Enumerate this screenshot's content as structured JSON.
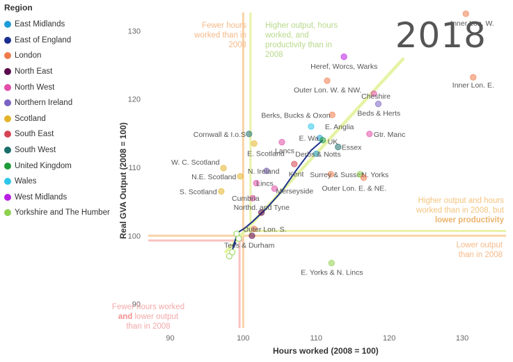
{
  "legend": {
    "title": "Region",
    "items": [
      {
        "label": "East Midlands",
        "color": "#1f9bd8"
      },
      {
        "label": "East of England",
        "color": "#1b2f8e"
      },
      {
        "label": "London",
        "color": "#ee7b4b"
      },
      {
        "label": "North East",
        "color": "#5a0a4d"
      },
      {
        "label": "North West",
        "color": "#e24da8"
      },
      {
        "label": "Northern Ireland",
        "color": "#7a63c2"
      },
      {
        "label": "Scotland",
        "color": "#e3b42b"
      },
      {
        "label": "South East",
        "color": "#d64454"
      },
      {
        "label": "South West",
        "color": "#1b6e6a"
      },
      {
        "label": "United Kingdom",
        "color": "#1e9a37"
      },
      {
        "label": "Wales",
        "color": "#2cc6ea"
      },
      {
        "label": "West Midlands",
        "color": "#b81ee3"
      },
      {
        "label": "Yorkshire and The Humber",
        "color": "#8fd14f"
      }
    ]
  },
  "year": "2018",
  "notes": {
    "top_left": "Fewer hours worked than in 2008",
    "top_right": "Higher output, hours worked, and productivity than in 2008",
    "right_line1": "Higher output and hours worked than in 2008, but",
    "right_bold": "lower productivity",
    "bottom_right": "Lower output than in 2008",
    "bottom_left_1": "Fewer hours worked",
    "bottom_left_bold": "and",
    "bottom_left_2": "lower output than in 2008"
  },
  "chart_data": {
    "type": "scatter",
    "xlabel": "Hours worked (2008 = 100)",
    "ylabel": "Real GVA Output (2008 = 100)",
    "xlim": [
      87,
      136
    ],
    "ylim": [
      86.5,
      133.5
    ],
    "xticks": [
      90,
      100,
      110,
      120,
      130
    ],
    "yticks": [
      90,
      100,
      110,
      120,
      130
    ],
    "points": [
      {
        "label": "Inner Lon. W.",
        "x": 130.5,
        "y": 132.5,
        "color": "#ee7b4b"
      },
      {
        "label": "Inner Lon. E.",
        "x": 131.5,
        "y": 123.2,
        "color": "#ee7b4b"
      },
      {
        "label": "Heref, Worcs, Warks",
        "x": 113.8,
        "y": 126.2,
        "color": "#b81ee3"
      },
      {
        "label": "Outer Lon. W. & NW.",
        "x": 111.5,
        "y": 122.7,
        "color": "#ee7b4b"
      },
      {
        "label": "Cheshire",
        "x": 117.9,
        "y": 120.8,
        "color": "#e24da8"
      },
      {
        "label": "Beds & Herts",
        "x": 118.5,
        "y": 119.3,
        "color": "#7a63c2"
      },
      {
        "label": "Berks, Bucks & Oxon",
        "x": 112.2,
        "y": 117.7,
        "color": "#ee7b4b"
      },
      {
        "label": "E. Anglia",
        "x": 109.3,
        "y": 116.0,
        "color": "#2cc6ea"
      },
      {
        "label": "Gtr. Manc",
        "x": 117.3,
        "y": 114.9,
        "color": "#e24da8"
      },
      {
        "label": "Cornwall & I.o.S",
        "x": 100.8,
        "y": 114.9,
        "color": "#1b6e6a"
      },
      {
        "label": "E. Wa",
        "x": 110.5,
        "y": 114.3,
        "color": "#1f9bd8"
      },
      {
        "label": "UK",
        "x": 110.9,
        "y": 114.0,
        "color": "#1e9a37"
      },
      {
        "label": "Essex",
        "x": 113.0,
        "y": 113.0,
        "color": "#1b6e6a"
      },
      {
        "label": "E. Scotland",
        "x": 101.5,
        "y": 113.5,
        "color": "#e3b42b"
      },
      {
        "label": "W. C. Scotland",
        "x": 97.3,
        "y": 109.9,
        "color": "#e3b42b"
      },
      {
        "label": "Lancs",
        "x": 105.3,
        "y": 113.7,
        "color": "#e24da8"
      },
      {
        "label": "Derbs & Notts",
        "x": 110.0,
        "y": 112.0,
        "color": "#1f9bd8"
      },
      {
        "label": "N. Ireland",
        "x": 103.2,
        "y": 109.5,
        "color": "#7a63c2"
      },
      {
        "label": "N.E. Scotland",
        "x": 99.6,
        "y": 108.7,
        "color": "#e3b42b"
      },
      {
        "label": "Kent",
        "x": 107.0,
        "y": 110.5,
        "color": "#d64454"
      },
      {
        "label": "Surrey & Sussex",
        "x": 112.0,
        "y": 109.0,
        "color": "#ee7b4b"
      },
      {
        "label": "N. Yorks",
        "x": 116.0,
        "y": 109.0,
        "color": "#8fd14f"
      },
      {
        "label": "Outer Lon. E. & NE.",
        "x": 116.5,
        "y": 108.5,
        "color": "#ee7b4b"
      },
      {
        "label": "Lincs",
        "x": 101.8,
        "y": 107.7,
        "color": "#e24da8"
      },
      {
        "label": "S. Scotland",
        "x": 97.0,
        "y": 106.5,
        "color": "#e3b42b"
      },
      {
        "label": "Merseyside",
        "x": 104.3,
        "y": 106.9,
        "color": "#e24da8"
      },
      {
        "label": "Cumbria",
        "x": 101.3,
        "y": 105.5,
        "color": "#e24da8"
      },
      {
        "label": "Northd. and Tyne",
        "x": 102.5,
        "y": 103.4,
        "color": "#5a0a4d"
      },
      {
        "label": "Outer Lon. S.",
        "x": 101.5,
        "y": 101.0,
        "color": "#ee7b4b"
      },
      {
        "label": "Tees & Durham",
        "x": 101.2,
        "y": 100.0,
        "color": "#5a0a4d"
      },
      {
        "label": "E. Yorks & N. Lincs",
        "x": 112.1,
        "y": 96.0,
        "color": "#8fd14f"
      }
    ]
  }
}
